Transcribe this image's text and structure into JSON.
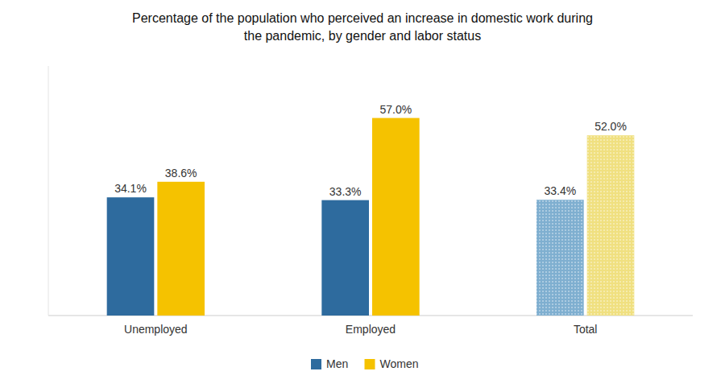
{
  "chart_data": {
    "type": "bar",
    "title": "Percentage of the population who perceived an increase in domestic work during\nthe pandemic, by gender and labor status",
    "categories": [
      "Unemployed",
      "Employed",
      "Total"
    ],
    "series": [
      {
        "name": "Men",
        "color": "#2E6B9E",
        "colors": [
          "#2E6B9E",
          "#2E6B9E",
          "#7FAFD0"
        ],
        "values": [
          34.1,
          33.3,
          33.4
        ],
        "value_labels": [
          "34.1%",
          "33.3%",
          "33.4%"
        ]
      },
      {
        "name": "Women",
        "color": "#F5C200",
        "colors": [
          "#F5C200",
          "#F5C200",
          "#F0E080"
        ],
        "values": [
          38.6,
          57.0,
          52.0
        ],
        "value_labels": [
          "38.6%",
          "57.0%",
          "52.0%"
        ]
      }
    ],
    "ylim": [
      0,
      72
    ],
    "grid": false,
    "legend": "bottom",
    "data_labels": true,
    "tick_labels": "x"
  }
}
